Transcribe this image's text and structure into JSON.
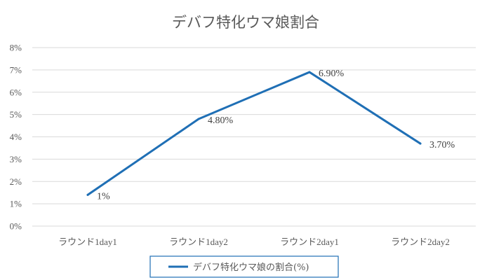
{
  "chart_data": {
    "type": "line",
    "title": "デバフ特化ウマ娘割合",
    "categories": [
      "ラウンド1day1",
      "ラウンド1day2",
      "ラウンド2day1",
      "ラウンド2day2"
    ],
    "series": [
      {
        "name": "デバフ特化ウマ娘の割合(%)",
        "values": [
          1.4,
          4.8,
          6.9,
          3.7
        ],
        "data_labels": [
          "1%",
          "4.80%",
          "6.90%",
          "3.70%"
        ],
        "color": "#1f6fb5"
      }
    ],
    "ylim": [
      0,
      8
    ],
    "yticks": [
      "0%",
      "1%",
      "2%",
      "3%",
      "4%",
      "5%",
      "6%",
      "7%",
      "8%"
    ],
    "grid": true,
    "legend_position": "bottom"
  }
}
